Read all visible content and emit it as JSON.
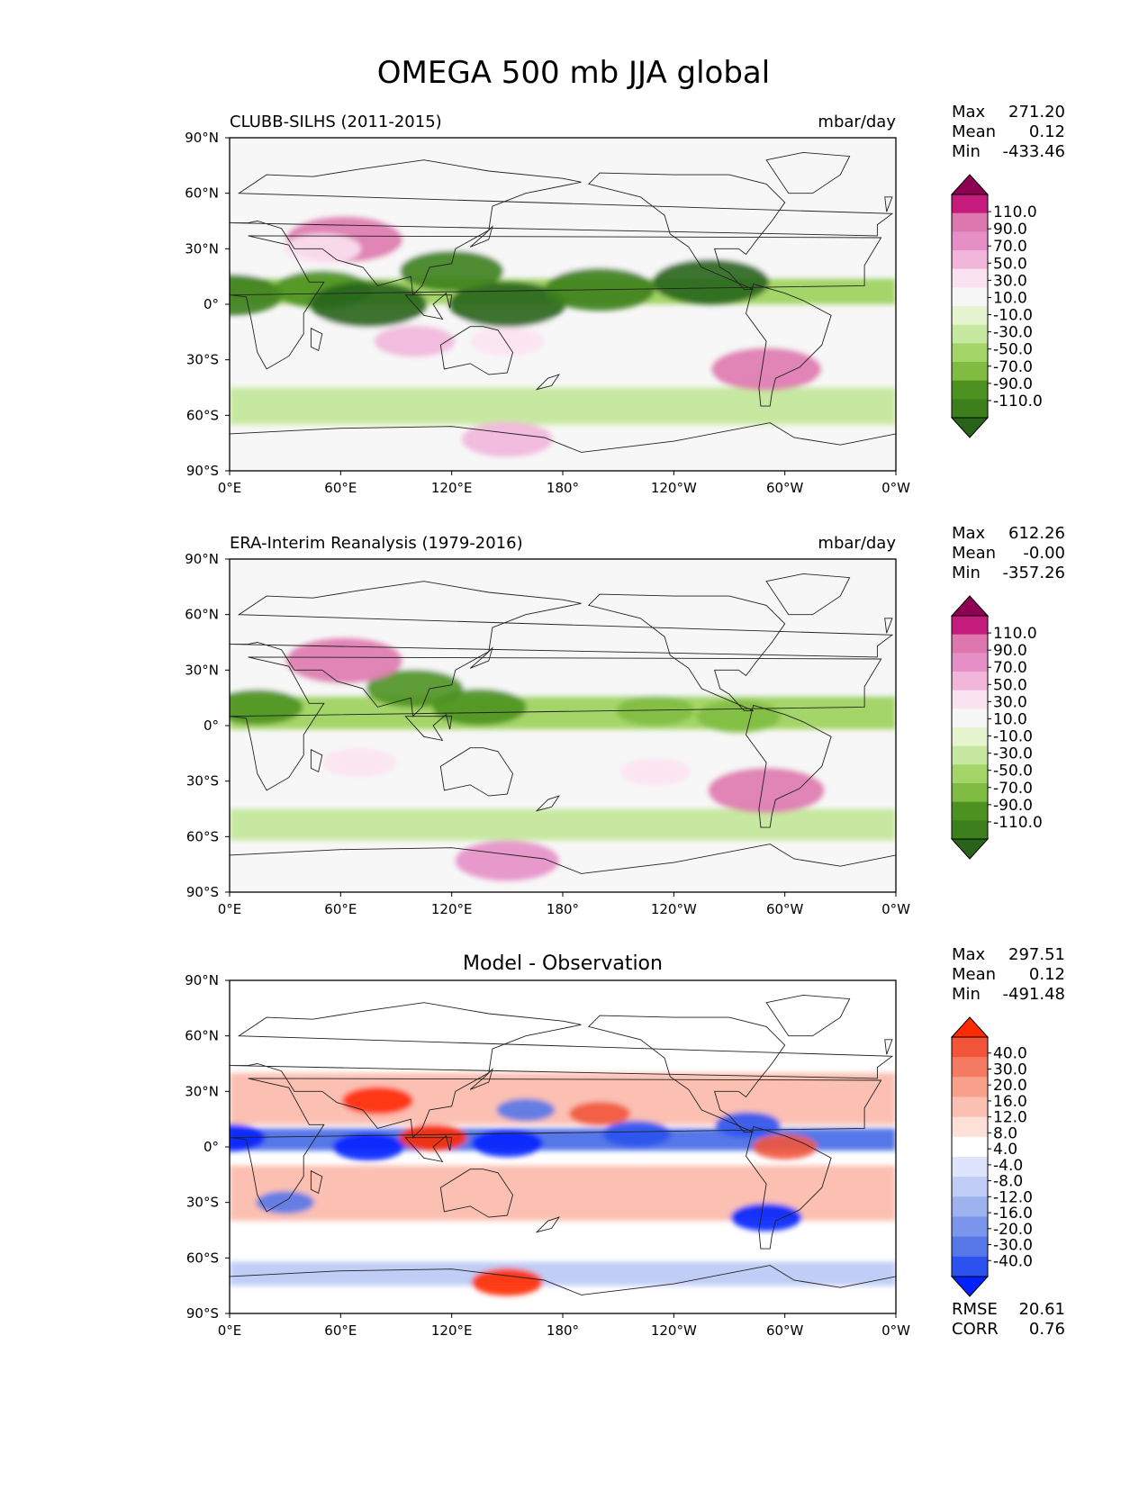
{
  "figure": {
    "title": "OMEGA 500 mb JJA global"
  },
  "colors": {
    "ocean_bg": "#f7f7f7",
    "diverging_green_pink": [
      "#276419",
      "#3c7f1c",
      "#4d9221",
      "#7fbc41",
      "#a4d568",
      "#c7e8a0",
      "#e6f5d0",
      "#f7f7f7",
      "#fbe2f0",
      "#f1b6da",
      "#e58fc6",
      "#de77ae",
      "#c51b7d",
      "#8e0152"
    ],
    "diverging_blue_red": [
      "#0022ff",
      "#2b52f0",
      "#5577e8",
      "#7b96ec",
      "#9fb2f0",
      "#c0cdf6",
      "#dde4fb",
      "#ffffff",
      "#fde0d8",
      "#fbc0b2",
      "#f8a08a",
      "#f57a62",
      "#f2553a",
      "#ff2a00"
    ],
    "coast": "#222222"
  },
  "chart_data": [
    {
      "type": "heatmap",
      "subtype": "filled-contour map",
      "title_left": "CLUBB-SILHS (2011-2015)",
      "title_right": "mbar/day",
      "xlabel": "",
      "ylabel": "",
      "xlim": [
        0,
        360
      ],
      "ylim": [
        -90,
        90
      ],
      "x_ticks": [
        "0°E",
        "60°E",
        "120°E",
        "180°",
        "120°W",
        "60°W",
        "0°W"
      ],
      "y_ticks": [
        "90°N",
        "60°N",
        "30°N",
        "0°",
        "30°S",
        "60°S",
        "90°S"
      ],
      "stats": {
        "max_label": "Max",
        "max": "271.20",
        "mean_label": "Mean",
        "mean": "0.12",
        "min_label": "Min",
        "min": "-433.46"
      },
      "colorbar": {
        "levels": [
          -110,
          -90,
          -70,
          -50,
          -30,
          -10,
          10,
          30,
          50,
          70,
          90,
          110
        ],
        "labels": [
          "110.0",
          "90.0",
          "70.0",
          "50.0",
          "30.0",
          "10.0",
          "-10.0",
          "-30.0",
          "-50.0",
          "-70.0",
          "-90.0",
          "-110.0"
        ]
      },
      "features": [
        {
          "lon": 0,
          "lat": 5,
          "value": -95
        },
        {
          "lon": 50,
          "lat": 8,
          "value": -80
        },
        {
          "lon": 75,
          "lat": 0,
          "value": -110
        },
        {
          "lon": 150,
          "lat": 0,
          "value": -110
        },
        {
          "lon": 120,
          "lat": 18,
          "value": -90
        },
        {
          "lon": 200,
          "lat": 8,
          "value": -100
        },
        {
          "lon": 260,
          "lat": 12,
          "value": -110
        },
        {
          "lon": 62,
          "lat": 35,
          "value": 110
        },
        {
          "lon": 100,
          "lat": -20,
          "value": 55
        },
        {
          "lon": 150,
          "lat": -20,
          "value": 45
        },
        {
          "lon": 290,
          "lat": -35,
          "value": 100
        },
        {
          "lon": 150,
          "lat": -73,
          "value": 70
        },
        {
          "lon": 50,
          "lat": 30,
          "value": 50
        }
      ]
    },
    {
      "type": "heatmap",
      "subtype": "filled-contour map",
      "title_left": "ERA-Interim Reanalysis (1979-2016)",
      "title_right": "mbar/day",
      "xlabel": "",
      "ylabel": "",
      "xlim": [
        0,
        360
      ],
      "ylim": [
        -90,
        90
      ],
      "x_ticks": [
        "0°E",
        "60°E",
        "120°E",
        "180°",
        "120°W",
        "60°W",
        "0°W"
      ],
      "y_ticks": [
        "90°N",
        "60°N",
        "30°N",
        "0°",
        "30°S",
        "60°S",
        "90°S"
      ],
      "stats": {
        "max_label": "Max",
        "max": "612.26",
        "mean_label": "Mean",
        "mean": "-0.00",
        "min_label": "Min",
        "min": "-357.26"
      },
      "colorbar": {
        "levels": [
          -110,
          -90,
          -70,
          -50,
          -30,
          -10,
          10,
          30,
          50,
          70,
          90,
          110
        ],
        "labels": [
          "110.0",
          "90.0",
          "70.0",
          "50.0",
          "30.0",
          "10.0",
          "-10.0",
          "-30.0",
          "-50.0",
          "-70.0",
          "-90.0",
          "-110.0"
        ]
      },
      "features": [
        {
          "lon": 15,
          "lat": 10,
          "value": -70
        },
        {
          "lon": 100,
          "lat": 20,
          "value": -80
        },
        {
          "lon": 135,
          "lat": 10,
          "value": -75
        },
        {
          "lon": 230,
          "lat": 8,
          "value": -50
        },
        {
          "lon": 275,
          "lat": 5,
          "value": -60
        },
        {
          "lon": 62,
          "lat": 35,
          "value": 110
        },
        {
          "lon": 290,
          "lat": -35,
          "value": 110
        },
        {
          "lon": 150,
          "lat": -73,
          "value": 90
        },
        {
          "lon": 70,
          "lat": -20,
          "value": 45
        },
        {
          "lon": 230,
          "lat": -25,
          "value": 40
        }
      ]
    },
    {
      "type": "heatmap",
      "subtype": "filled-contour map",
      "title_center": "Model - Observation",
      "xlabel": "",
      "ylabel": "",
      "xlim": [
        0,
        360
      ],
      "ylim": [
        -90,
        90
      ],
      "x_ticks": [
        "0°E",
        "60°E",
        "120°E",
        "180°",
        "120°W",
        "60°W",
        "0°W"
      ],
      "y_ticks": [
        "90°N",
        "60°N",
        "30°N",
        "0°",
        "30°S",
        "60°S",
        "90°S"
      ],
      "stats": {
        "max_label": "Max",
        "max": "297.51",
        "mean_label": "Mean",
        "mean": "0.12",
        "min_label": "Min",
        "min": "-491.48"
      },
      "metrics": {
        "rmse_label": "RMSE",
        "rmse": "20.61",
        "corr_label": "CORR",
        "corr": "0.76"
      },
      "colorbar": {
        "levels": [
          -40,
          -30,
          -20,
          -16,
          -12,
          -8,
          -4,
          4,
          8,
          12,
          16,
          20,
          30,
          40
        ],
        "labels": [
          "40.0",
          "30.0",
          "20.0",
          "16.0",
          "12.0",
          "8.0",
          "4.0",
          "-4.0",
          "-8.0",
          "-12.0",
          "-16.0",
          "-20.0",
          "-30.0",
          "-40.0"
        ]
      },
      "features": [
        {
          "lon": 0,
          "lat": 5,
          "value": -40
        },
        {
          "lon": 75,
          "lat": 0,
          "value": -40
        },
        {
          "lon": 150,
          "lat": 2,
          "value": -40
        },
        {
          "lon": 220,
          "lat": 7,
          "value": -35
        },
        {
          "lon": 280,
          "lat": 12,
          "value": -30
        },
        {
          "lon": 80,
          "lat": 25,
          "value": 40
        },
        {
          "lon": 110,
          "lat": 5,
          "value": 35
        },
        {
          "lon": 300,
          "lat": 0,
          "value": 30
        },
        {
          "lon": 200,
          "lat": 18,
          "value": 25
        },
        {
          "lon": 290,
          "lat": -38,
          "value": -40
        },
        {
          "lon": 30,
          "lat": -30,
          "value": -20
        },
        {
          "lon": 160,
          "lat": 20,
          "value": -20
        },
        {
          "lon": 150,
          "lat": -73,
          "value": 40
        }
      ]
    }
  ]
}
